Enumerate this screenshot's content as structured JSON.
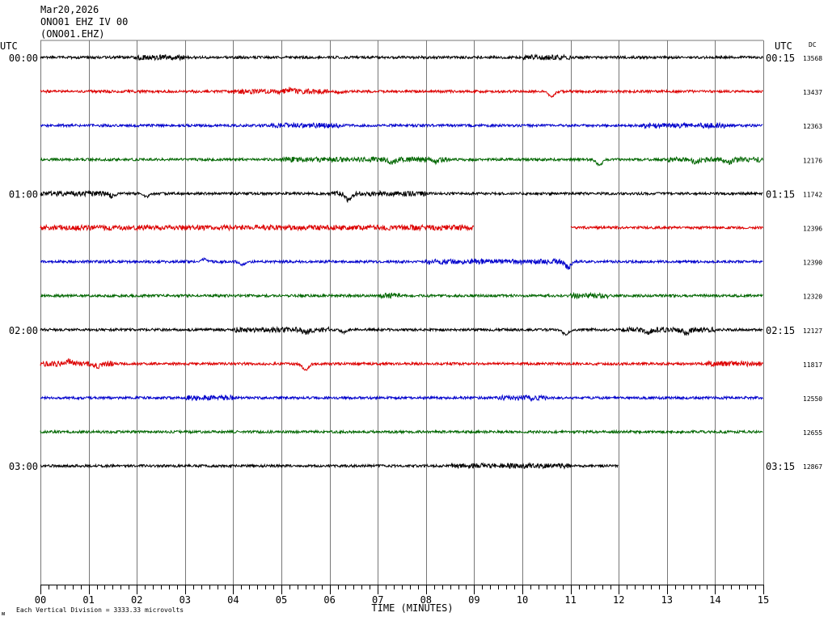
{
  "header": {
    "date": "Mar20,2026",
    "station": "ONO01 EHZ IV 00",
    "channel": "(ONO01.EHZ)"
  },
  "labels": {
    "utc_left": "UTC",
    "utc_right": "UTC",
    "dc": "DC",
    "xlabel": "TIME (MINUTES)",
    "footer_mark": "ᴍ",
    "footer": "Each Vertical Division = 3333.33 microvolts"
  },
  "colors": {
    "black": "#000000",
    "red": "#dd0000",
    "blue": "#0000cc",
    "green": "#006600",
    "grid": "#777777"
  },
  "chart_data": {
    "type": "line",
    "xlabel": "TIME (MINUTES)",
    "x_ticks": [
      "00",
      "01",
      "02",
      "03",
      "04",
      "05",
      "06",
      "07",
      "08",
      "09",
      "10",
      "11",
      "12",
      "13",
      "14",
      "15"
    ],
    "xlim": [
      0,
      15
    ],
    "left_time_labels": [
      {
        "row": 0,
        "label": "00:00"
      },
      {
        "row": 4,
        "label": "01:00"
      },
      {
        "row": 8,
        "label": "02:00"
      },
      {
        "row": 12,
        "label": "03:00"
      }
    ],
    "right_time_labels": [
      {
        "row": 0,
        "label": "00:15"
      },
      {
        "row": 4,
        "label": "01:15"
      },
      {
        "row": 8,
        "label": "02:15"
      },
      {
        "row": 12,
        "label": "03:15"
      }
    ],
    "series": [
      {
        "row": 0,
        "color": "black",
        "dc": "13568",
        "end_min": 15,
        "events": [],
        "noisy": [
          [
            2,
            3
          ],
          [
            10,
            11
          ]
        ],
        "gaps": []
      },
      {
        "row": 1,
        "color": "red",
        "dc": "13437",
        "end_min": 15,
        "events": [
          [
            5.2,
            -3
          ],
          [
            6.2,
            2
          ],
          [
            10.6,
            7
          ]
        ],
        "noisy": [
          [
            4,
            6
          ]
        ],
        "gaps": []
      },
      {
        "row": 2,
        "color": "blue",
        "dc": "12363",
        "end_min": 15,
        "events": [],
        "noisy": [
          [
            4.8,
            6.2
          ],
          [
            12.5,
            14.2
          ]
        ],
        "gaps": []
      },
      {
        "row": 3,
        "color": "green",
        "dc": "12176",
        "end_min": 15,
        "events": [
          [
            7.3,
            4
          ],
          [
            8.2,
            3
          ],
          [
            11.6,
            7
          ],
          [
            13.6,
            3
          ],
          [
            14.3,
            3
          ]
        ],
        "noisy": [
          [
            5,
            8.5
          ],
          [
            13,
            15
          ]
        ],
        "gaps": []
      },
      {
        "row": 4,
        "color": "black",
        "dc": "11742",
        "end_min": 15,
        "events": [
          [
            1.5,
            3
          ],
          [
            2.2,
            4
          ],
          [
            6.4,
            8
          ]
        ],
        "noisy": [
          [
            0,
            1.5
          ],
          [
            6,
            8
          ]
        ],
        "gaps": []
      },
      {
        "row": 5,
        "color": "red",
        "dc": "12396",
        "end_min": 15,
        "events": [],
        "noisy": [
          [
            0,
            9
          ]
        ],
        "gaps": [
          [
            9,
            11
          ]
        ]
      },
      {
        "row": 6,
        "color": "blue",
        "dc": "12390",
        "end_min": 15,
        "events": [
          [
            3.4,
            -3
          ],
          [
            4.2,
            4
          ],
          [
            10.95,
            7
          ]
        ],
        "noisy": [
          [
            8,
            11
          ]
        ],
        "gaps": []
      },
      {
        "row": 7,
        "color": "green",
        "dc": "12320",
        "end_min": 15,
        "events": [],
        "noisy": [
          [
            7,
            7.5
          ],
          [
            11,
            11.8
          ]
        ],
        "gaps": []
      },
      {
        "row": 8,
        "color": "black",
        "dc": "12127",
        "end_min": 15,
        "events": [
          [
            5.5,
            3
          ],
          [
            6.3,
            3
          ],
          [
            10.9,
            6
          ],
          [
            12.6,
            3
          ],
          [
            13.4,
            4
          ]
        ],
        "noisy": [
          [
            4,
            6
          ],
          [
            12,
            14
          ]
        ],
        "gaps": []
      },
      {
        "row": 9,
        "color": "red",
        "dc": "11817",
        "end_min": 15,
        "events": [
          [
            0.6,
            -3
          ],
          [
            1.2,
            3
          ],
          [
            5.5,
            8
          ]
        ],
        "noisy": [
          [
            0,
            1.5
          ],
          [
            13.8,
            15
          ]
        ],
        "gaps": []
      },
      {
        "row": 10,
        "color": "blue",
        "dc": "12550",
        "end_min": 15,
        "events": [],
        "noisy": [
          [
            3,
            4
          ],
          [
            9.5,
            10.5
          ]
        ],
        "gaps": []
      },
      {
        "row": 11,
        "color": "green",
        "dc": "12655",
        "end_min": 15,
        "events": [],
        "noisy": [],
        "gaps": []
      },
      {
        "row": 12,
        "color": "black",
        "dc": "12867",
        "end_min": 12,
        "events": [],
        "noisy": [
          [
            8.5,
            11
          ]
        ],
        "gaps": []
      }
    ]
  }
}
